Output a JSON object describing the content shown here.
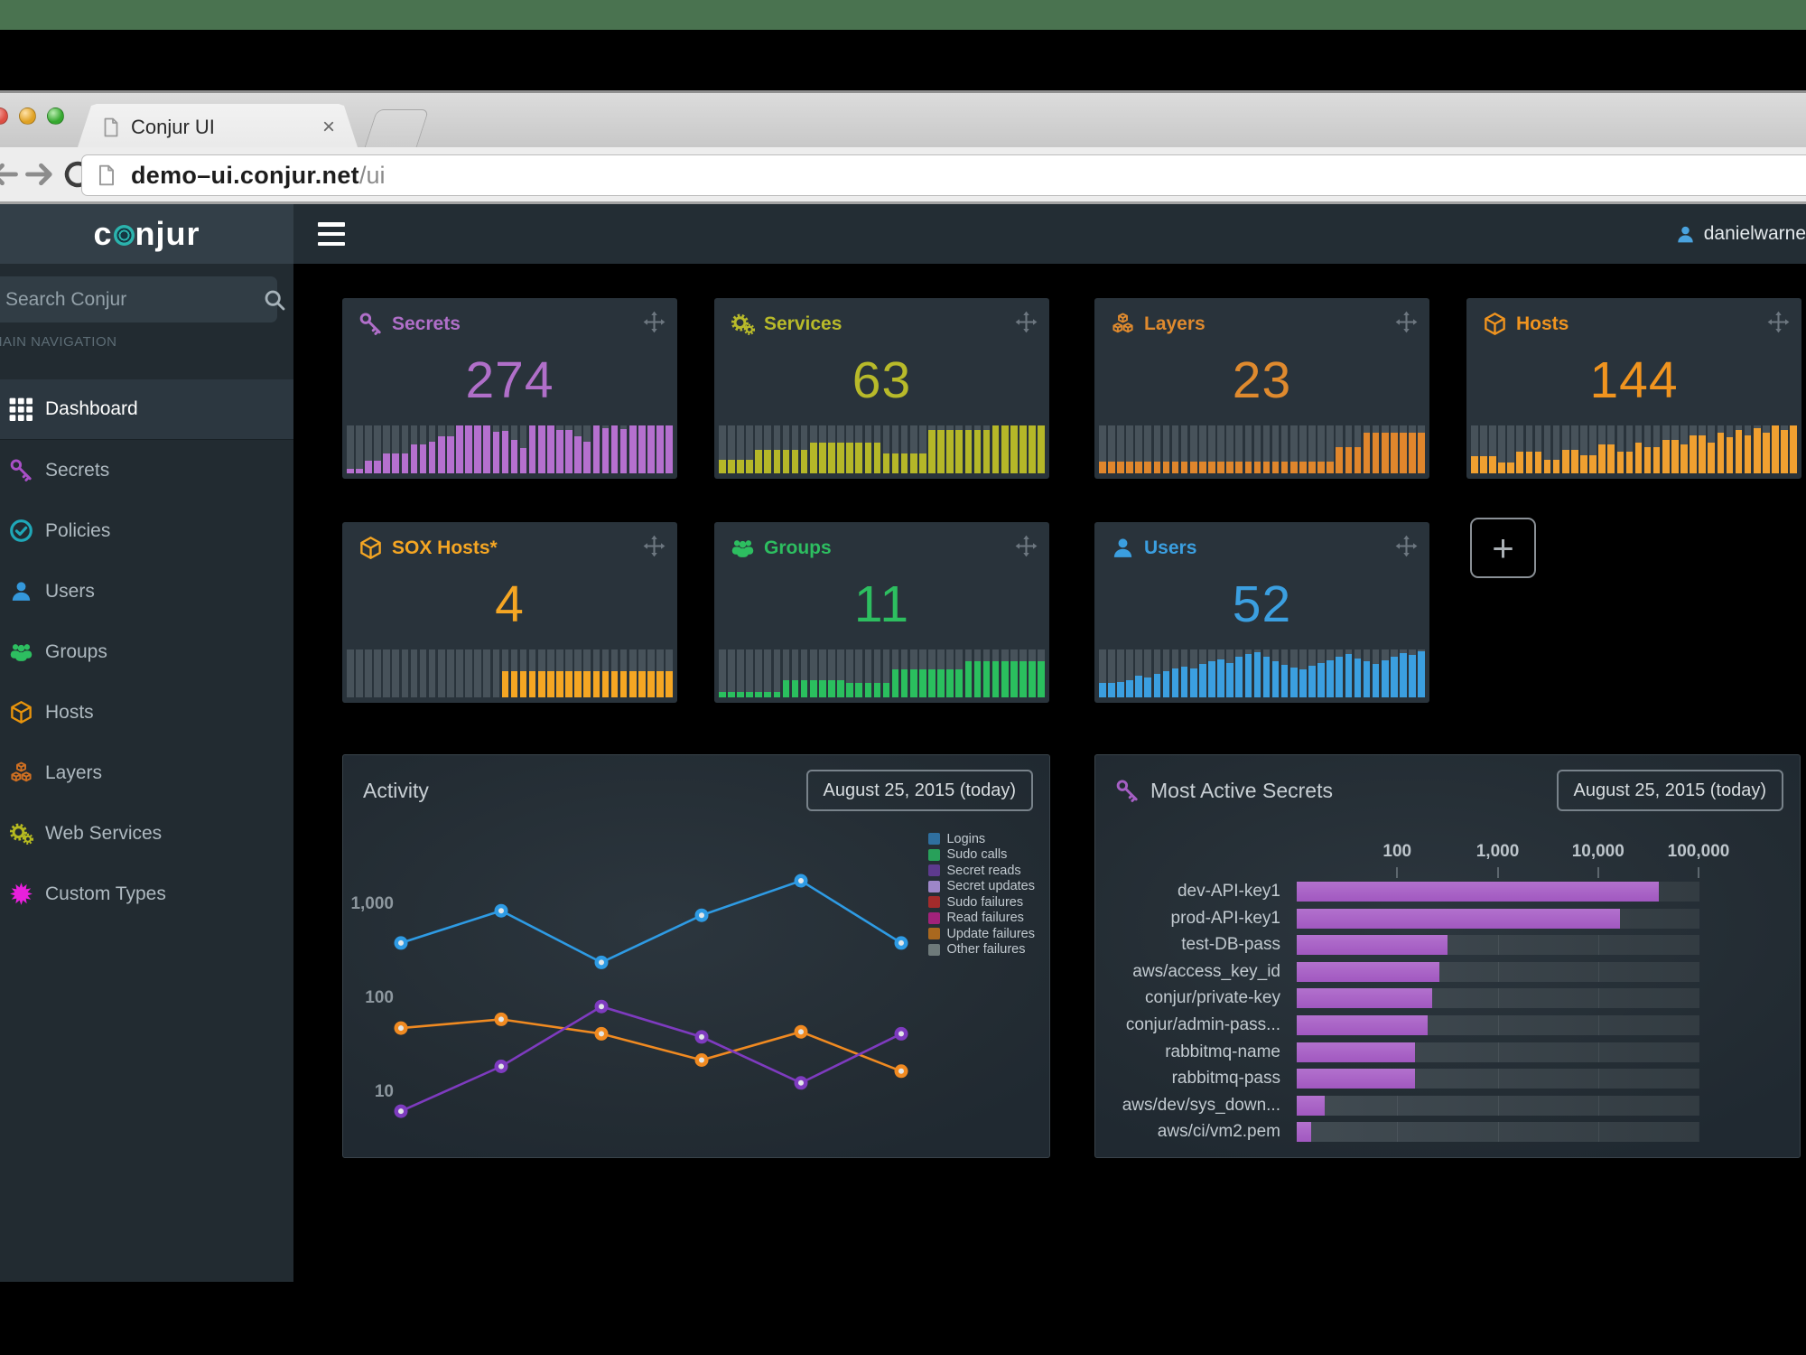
{
  "window_chrome": {
    "tab": {
      "title": "Conjur UI",
      "close_glyph": "×"
    },
    "url_host": "demo–ui.conjur.net",
    "url_path": "/ui"
  },
  "header": {
    "logo_text": "conjur",
    "user_name": "danielwarne"
  },
  "sidebar": {
    "search_placeholder": "Search Conjur",
    "section_label": "MAIN NAVIGATION",
    "items": [
      {
        "label": "Dashboard",
        "icon": "grid-icon",
        "color": "#ffffff",
        "active": true
      },
      {
        "label": "Secrets",
        "icon": "key-icon",
        "color": "#a84fc7",
        "active": false
      },
      {
        "label": "Policies",
        "icon": "check-circle-icon",
        "color": "#1fa8b8",
        "active": false
      },
      {
        "label": "Users",
        "icon": "user-icon",
        "color": "#3498db",
        "active": false
      },
      {
        "label": "Groups",
        "icon": "users-icon",
        "color": "#2dbe60",
        "active": false
      },
      {
        "label": "Hosts",
        "icon": "cube-icon",
        "color": "#e8940c",
        "active": false
      },
      {
        "label": "Layers",
        "icon": "cubes-icon",
        "color": "#cf7022",
        "active": false
      },
      {
        "label": "Web Services",
        "icon": "gears-icon",
        "color": "#b5b920",
        "active": false
      },
      {
        "label": "Custom Types",
        "icon": "burst-icon",
        "color": "#e820dc",
        "active": false
      }
    ]
  },
  "dashboard": {
    "add_button_label": "+",
    "cards": [
      {
        "title": "Secrets",
        "value": "274",
        "icon": "key-icon",
        "color": "#b06fc9",
        "spark_color": "#b570cf",
        "spark": [
          0.1,
          0.1,
          0.26,
          0.26,
          0.42,
          0.42,
          0.42,
          0.6,
          0.6,
          0.66,
          0.78,
          0.78,
          1,
          1,
          1,
          1,
          0.86,
          0.88,
          0.7,
          0.52,
          1,
          1,
          1,
          0.9,
          0.9,
          0.78,
          0.66,
          1,
          0.95,
          1,
          0.92,
          1,
          1,
          1,
          1,
          1
        ]
      },
      {
        "title": "Services",
        "value": "63",
        "icon": "gears-icon",
        "color": "#b8ba2a",
        "spark_color": "#b5b728",
        "spark": [
          0.28,
          0.28,
          0.28,
          0.28,
          0.5,
          0.5,
          0.5,
          0.5,
          0.5,
          0.5,
          0.65,
          0.65,
          0.65,
          0.65,
          0.65,
          0.65,
          0.65,
          0.65,
          0.42,
          0.42,
          0.42,
          0.42,
          0.42,
          0.9,
          0.9,
          0.9,
          0.9,
          0.9,
          0.9,
          0.9,
          1,
          1,
          1,
          1,
          1,
          1
        ]
      },
      {
        "title": "Layers",
        "value": "23",
        "icon": "cubes-icon",
        "color": "#df8a2e",
        "spark_color": "#e0862c",
        "spark": [
          0.25,
          0.25,
          0.25,
          0.25,
          0.25,
          0.25,
          0.25,
          0.25,
          0.25,
          0.25,
          0.25,
          0.25,
          0.25,
          0.25,
          0.25,
          0.25,
          0.25,
          0.25,
          0.25,
          0.25,
          0.25,
          0.25,
          0.25,
          0.25,
          0.25,
          0.25,
          0.55,
          0.55,
          0.55,
          0.85,
          0.85,
          0.85,
          0.85,
          0.85,
          0.85,
          0.85
        ]
      },
      {
        "title": "Hosts",
        "value": "144",
        "icon": "cube-icon",
        "color": "#f0941f",
        "spark_color": "#f0a030",
        "spark": [
          0.35,
          0.35,
          0.35,
          0.22,
          0.22,
          0.45,
          0.45,
          0.45,
          0.28,
          0.28,
          0.5,
          0.5,
          0.38,
          0.38,
          0.6,
          0.6,
          0.45,
          0.45,
          0.65,
          0.55,
          0.55,
          0.7,
          0.7,
          0.6,
          0.8,
          0.8,
          0.65,
          0.85,
          0.75,
          0.9,
          0.8,
          0.95,
          0.85,
          1,
          0.9,
          1
        ]
      },
      {
        "title": "SOX Hosts*",
        "value": "4",
        "icon": "cube-icon",
        "color": "#f5a623",
        "spark_color": "#f5a623",
        "spark": [
          0,
          0,
          0,
          0,
          0,
          0,
          0,
          0,
          0,
          0,
          0,
          0,
          0,
          0,
          0,
          0,
          0,
          0.55,
          0.55,
          0.55,
          0.55,
          0.55,
          0.55,
          0.55,
          0.55,
          0.55,
          0.55,
          0.55,
          0.55,
          0.55,
          0.55,
          0.55,
          0.55,
          0.55,
          0.55,
          0.55
        ]
      },
      {
        "title": "Groups",
        "value": "11",
        "icon": "users-icon",
        "color": "#2dbe60",
        "spark_color": "#2abf5e",
        "spark": [
          0.12,
          0.12,
          0.12,
          0.12,
          0.12,
          0.12,
          0.12,
          0.36,
          0.36,
          0.36,
          0.36,
          0.36,
          0.36,
          0.36,
          0.3,
          0.3,
          0.3,
          0.3,
          0.3,
          0.58,
          0.58,
          0.58,
          0.58,
          0.58,
          0.58,
          0.58,
          0.58,
          0.75,
          0.75,
          0.75,
          0.75,
          0.75,
          0.75,
          0.75,
          0.75,
          0.75
        ]
      },
      {
        "title": "Users",
        "value": "52",
        "icon": "user-icon",
        "color": "#3b9fe0",
        "spark_color": "#3b9fe0",
        "spark": [
          0.3,
          0.3,
          0.33,
          0.36,
          0.45,
          0.42,
          0.5,
          0.55,
          0.6,
          0.65,
          0.6,
          0.7,
          0.75,
          0.8,
          0.72,
          0.85,
          0.9,
          0.95,
          0.85,
          0.75,
          0.68,
          0.62,
          0.58,
          0.66,
          0.72,
          0.78,
          0.85,
          0.9,
          0.82,
          0.75,
          0.7,
          0.78,
          0.85,
          0.92,
          0.88,
          0.96
        ]
      }
    ]
  },
  "activity_panel": {
    "title": "Activity",
    "date_label": "August 25, 2015 (today)",
    "chart_data": {
      "type": "line",
      "y_scale": "log",
      "y_ticks": [
        {
          "label": "1,000",
          "value": 1000
        },
        {
          "label": "100",
          "value": 100
        },
        {
          "label": "10",
          "value": 10
        }
      ],
      "legend": [
        {
          "label": "Logins",
          "color": "#2f6f9f"
        },
        {
          "label": "Sudo calls",
          "color": "#28a05a"
        },
        {
          "label": "Secret reads",
          "color": "#5d3a8e"
        },
        {
          "label": "Secret updates",
          "color": "#9d86c8"
        },
        {
          "label": "Sudo failures",
          "color": "#a32b2b"
        },
        {
          "label": "Read failures",
          "color": "#a1227a"
        },
        {
          "label": "Update failures",
          "color": "#a9681f"
        },
        {
          "label": "Other failures",
          "color": "#6e7a7a"
        }
      ],
      "series": [
        {
          "name": "Logins",
          "color": "#2e9be4",
          "values": [
            370,
            815,
            230,
            730,
            1700,
            370
          ]
        },
        {
          "name": "Update failures",
          "color": "#f08a21",
          "values": [
            46,
            57,
            40,
            21,
            42,
            16
          ]
        },
        {
          "name": "Secret reads",
          "color": "#7e3bbf",
          "values": [
            6,
            18,
            78,
            37,
            12,
            40
          ]
        }
      ]
    }
  },
  "secrets_panel": {
    "title": "Most Active Secrets",
    "date_label": "August 25, 2015 (today)",
    "chart_data": {
      "type": "bar",
      "orientation": "horizontal",
      "x_scale": "log",
      "x_range": [
        10,
        100000
      ],
      "x_ticks": [
        {
          "label": "100",
          "value": 100
        },
        {
          "label": "1,000",
          "value": 1000
        },
        {
          "label": "10,000",
          "value": 10000
        },
        {
          "label": "100,000",
          "value": 100000
        }
      ],
      "bar_color": "#a95fc4",
      "rows": [
        {
          "label": "dev-API-key1",
          "value": 40000
        },
        {
          "label": "prod-API-key1",
          "value": 16500
        },
        {
          "label": "test-DB-pass",
          "value": 320
        },
        {
          "label": "aws/access_key_id",
          "value": 265
        },
        {
          "label": "conjur/private-key",
          "value": 225
        },
        {
          "label": "conjur/admin-pass...",
          "value": 200
        },
        {
          "label": "rabbitmq-name",
          "value": 150
        },
        {
          "label": "rabbitmq-pass",
          "value": 150
        },
        {
          "label": "aws/dev/sys_down...",
          "value": 19
        },
        {
          "label": "aws/ci/vm2.pem",
          "value": 14
        }
      ]
    }
  }
}
